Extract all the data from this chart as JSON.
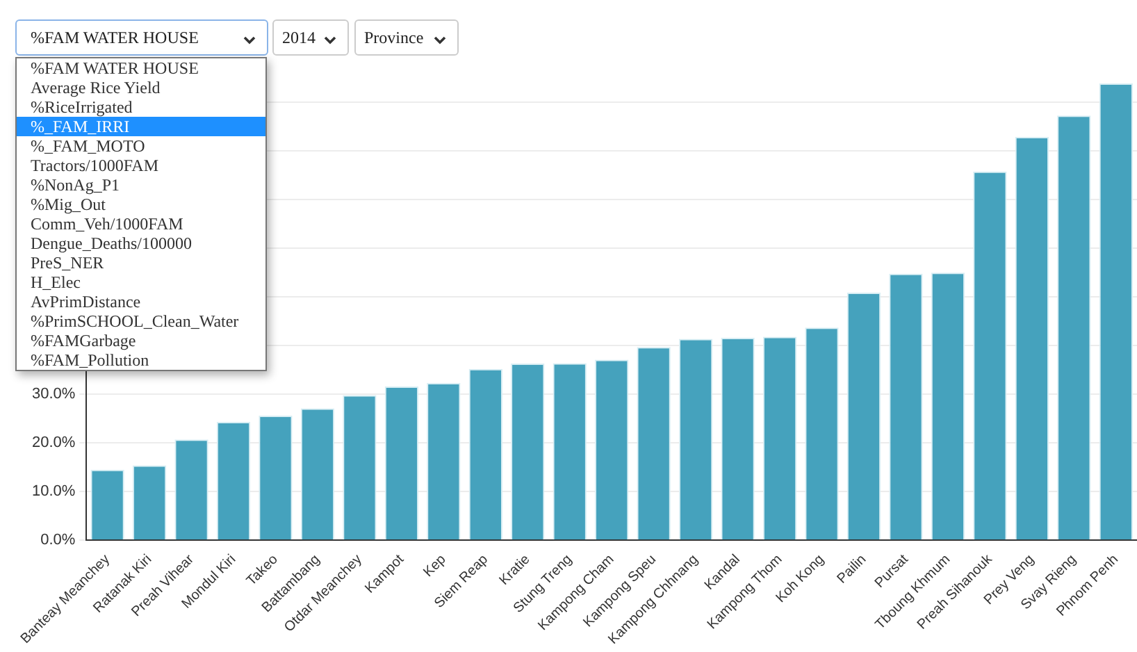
{
  "chart_data": {
    "type": "bar",
    "categories": [
      "Banteay Meanchey",
      "Ratanak Kiri",
      "Preah Vihear",
      "Mondul Kiri",
      "Takeo",
      "Battambang",
      "Otdar Meanchey",
      "Kampot",
      "Kep",
      "Siem Reap",
      "Kratie",
      "Stung Treng",
      "Kampong Cham",
      "Kampong Speu",
      "Kampong Chhnang",
      "Kandal",
      "Kampong Thom",
      "Koh Kong",
      "Pailin",
      "Pursat",
      "Tboung Khmum",
      "Preah Sihanouk",
      "Prey Veng",
      "Svay Rieng",
      "Phnom Penh"
    ],
    "values": [
      14.5,
      15.4,
      20.7,
      24.3,
      25.6,
      27.1,
      29.8,
      31.6,
      32.3,
      35.2,
      36.3,
      36.4,
      37.1,
      39.7,
      41.4,
      41.6,
      41.8,
      43.7,
      50.9,
      54.8,
      55.0,
      75.8,
      82.9,
      87.3,
      93.9
    ],
    "color": "#45a2bd",
    "ylim": [
      0,
      93.9
    ],
    "yticks": [
      {
        "value": 0,
        "label": "0.0%"
      },
      {
        "value": 10,
        "label": "10.0%"
      },
      {
        "value": 20,
        "label": "20.0%"
      },
      {
        "value": 30,
        "label": "30.0%"
      },
      {
        "value": 40,
        "label": null
      },
      {
        "value": 50,
        "label": null
      },
      {
        "value": 60,
        "label": null
      },
      {
        "value": 70,
        "label": null
      },
      {
        "value": 80,
        "label": null
      },
      {
        "value": 90,
        "label": null
      }
    ],
    "grid": "y",
    "annotations": [
      "%FAM WATER HOUSE",
      "2014",
      "Province",
      "%FAM WATER HOUSE",
      "Average Rice Yield",
      "%RiceIrrigated",
      "%_FAM_IRRI",
      "%_FAM_MOTO",
      "Tractors/1000FAM",
      "%NonAg_P1",
      "%Mig_Out",
      "Comm_Veh/1000FAM",
      "Dengue_Deaths/100000",
      "PreS_NER",
      "H_Elec",
      "AvPrimDistance",
      "%PrimSCHOOL_Clean_Water",
      "%FAMGarbage",
      "%FAM_Pollution"
    ]
  }
}
